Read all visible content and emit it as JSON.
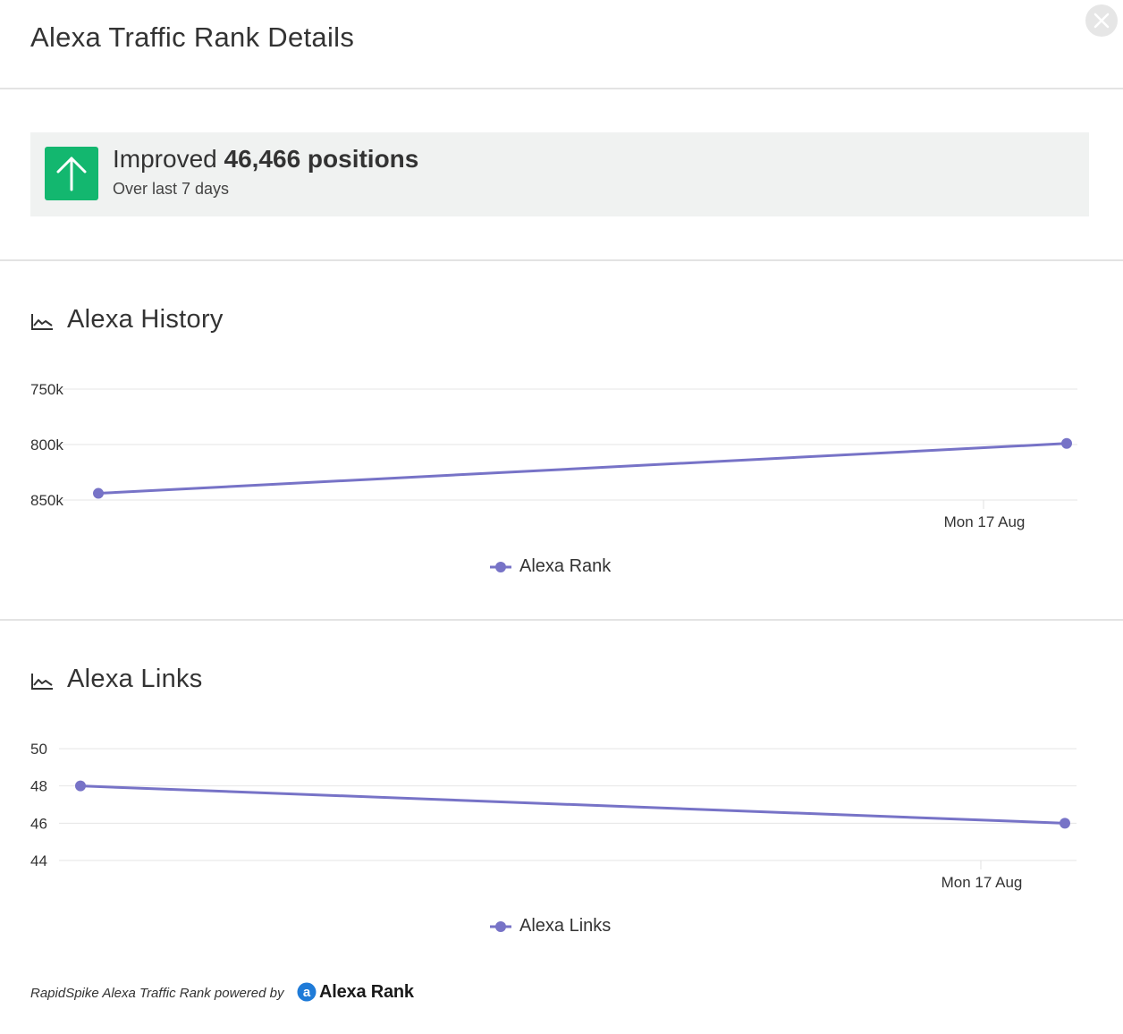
{
  "modal": {
    "title": "Alexa Traffic Rank Details",
    "close_icon": "close-icon"
  },
  "summary": {
    "icon": "arrow-up-icon",
    "badge_color": "#13b76f",
    "prefix": "Improved",
    "highlight": "46,466 positions",
    "subtitle": "Over last 7 days"
  },
  "history": {
    "title": "Alexa History",
    "icon": "line-chart-icon"
  },
  "links": {
    "title": "Alexa Links",
    "icon": "line-chart-icon"
  },
  "chart_data": [
    {
      "type": "line",
      "title": "",
      "xlabel": "",
      "ylabel": "",
      "x_ticks": [
        "Mon 17 Aug"
      ],
      "y_ticks": [
        "850k",
        "800k",
        "750k"
      ],
      "y_tick_values": [
        850000,
        800000,
        750000
      ],
      "ylim": [
        750000,
        850000
      ],
      "invert_y": true,
      "grid": true,
      "legend_position": "bottom-center",
      "series": [
        {
          "name": "Alexa Rank",
          "color": "#7773c7",
          "points": [
            {
              "x": "start of 7-day period",
              "y": 844000
            },
            {
              "x": "end of 7-day period",
              "y": 799000
            }
          ]
        }
      ]
    },
    {
      "type": "line",
      "title": "",
      "xlabel": "",
      "ylabel": "",
      "x_ticks": [
        "Mon 17 Aug"
      ],
      "y_ticks": [
        "50",
        "48",
        "46",
        "44"
      ],
      "y_tick_values": [
        50,
        48,
        46,
        44
      ],
      "ylim": [
        44,
        50
      ],
      "grid": true,
      "legend_position": "bottom-center",
      "series": [
        {
          "name": "Alexa Links",
          "color": "#7773c7",
          "points": [
            {
              "x": "start of 7-day period",
              "y": 48
            },
            {
              "x": "end of 7-day period",
              "y": 46
            }
          ]
        }
      ]
    }
  ],
  "footer": {
    "text": "RapidSpike Alexa Traffic Rank powered by",
    "logo_text": "Alexa Rank",
    "logo_mark": "a",
    "logo_color": "#1f7bd8"
  }
}
